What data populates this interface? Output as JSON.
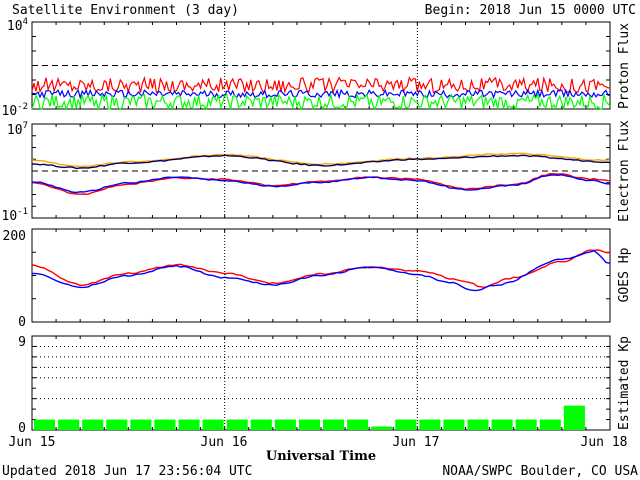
{
  "header": {
    "title": "Satellite Environment (3 day)",
    "begin": "Begin:  2018 Jun 15 0000 UTC"
  },
  "footer": {
    "updated": "Updated 2018 Jun 17 23:56:04 UTC",
    "credit": "NOAA/SWPC Boulder, CO USA",
    "xlabel": "Universal Time"
  },
  "x_axis": {
    "ticks": [
      "Jun 15",
      "Jun 16",
      "Jun 17",
      "Jun 18"
    ]
  },
  "chart_data": [
    {
      "id": "proton",
      "type": "line",
      "ylabel": "Proton Flux",
      "yscale": "log",
      "ylim": [
        0.01,
        10000
      ],
      "ytick_labels": [
        {
          "base": "10",
          "exp": "4"
        },
        {
          "base": "10",
          "exp": "-2"
        }
      ],
      "threshold": 10,
      "series": [
        {
          "color": "#ff0000",
          "base": 0.45,
          "noise": 0.12
        },
        {
          "color": "#0000ff",
          "base": 0.11,
          "noise": 0.06
        },
        {
          "color": "#00ff00",
          "base": 0.03,
          "noise": 0.12
        }
      ]
    },
    {
      "id": "electron",
      "type": "line",
      "ylabel": "Electron Flux",
      "yscale": "log",
      "ylim": [
        0.1,
        10000000
      ],
      "ytick_labels": [
        {
          "base": "10",
          "exp": "7"
        },
        {
          "base": "10",
          "exp": "-1"
        }
      ],
      "threshold": 1000,
      "series": [
        {
          "color": "#ffa500",
          "points": [
            [
              0,
              8000
            ],
            [
              6,
              2500
            ],
            [
              12,
              6000
            ],
            [
              24,
              25000
            ],
            [
              36,
              4000
            ],
            [
              48,
              12000
            ],
            [
              60,
              30000
            ],
            [
              72,
              8000
            ]
          ]
        },
        {
          "color": "#000060",
          "points": [
            [
              0,
              4000
            ],
            [
              6,
              1800
            ],
            [
              12,
              5000
            ],
            [
              24,
              20000
            ],
            [
              36,
              3000
            ],
            [
              48,
              10000
            ],
            [
              60,
              20000
            ],
            [
              72,
              6000
            ]
          ]
        },
        {
          "color": "#ff0000",
          "points": [
            [
              0,
              100
            ],
            [
              6,
              10
            ],
            [
              12,
              80
            ],
            [
              18,
              250
            ],
            [
              24,
              200
            ],
            [
              30,
              60
            ],
            [
              36,
              130
            ],
            [
              42,
              300
            ],
            [
              48,
              200
            ],
            [
              54,
              30
            ],
            [
              60,
              70
            ],
            [
              65,
              600
            ],
            [
              70,
              200
            ],
            [
              72,
              150
            ]
          ]
        },
        {
          "color": "#0000ff",
          "points": [
            [
              0,
              120
            ],
            [
              6,
              15
            ],
            [
              12,
              100
            ],
            [
              18,
              300
            ],
            [
              24,
              150
            ],
            [
              30,
              50
            ],
            [
              36,
              110
            ],
            [
              42,
              280
            ],
            [
              48,
              150
            ],
            [
              54,
              25
            ],
            [
              60,
              60
            ],
            [
              65,
              500
            ],
            [
              70,
              150
            ],
            [
              72,
              80
            ]
          ]
        }
      ]
    },
    {
      "id": "hp",
      "type": "line",
      "ylabel": "GOES Hp",
      "yscale": "linear",
      "ylim": [
        0,
        200
      ],
      "ytick_labels": [
        "200",
        "0"
      ],
      "series": [
        {
          "color": "#ff0000",
          "points": [
            [
              0,
              122
            ],
            [
              6,
              80
            ],
            [
              12,
              105
            ],
            [
              18,
              123
            ],
            [
              24,
              105
            ],
            [
              30,
              83
            ],
            [
              36,
              103
            ],
            [
              42,
              118
            ],
            [
              48,
              110
            ],
            [
              54,
              88
            ],
            [
              56,
              75
            ],
            [
              60,
              95
            ],
            [
              66,
              130
            ],
            [
              70,
              155
            ],
            [
              72,
              148
            ]
          ]
        },
        {
          "color": "#0000ff",
          "points": [
            [
              0,
              105
            ],
            [
              6,
              75
            ],
            [
              12,
              100
            ],
            [
              18,
              120
            ],
            [
              24,
              95
            ],
            [
              30,
              80
            ],
            [
              36,
              100
            ],
            [
              42,
              118
            ],
            [
              48,
              102
            ],
            [
              52,
              85
            ],
            [
              55,
              68
            ],
            [
              58,
              80
            ],
            [
              66,
              135
            ],
            [
              70,
              152
            ],
            [
              72,
              125
            ]
          ]
        }
      ]
    },
    {
      "id": "kp",
      "type": "bar",
      "ylabel": "Estimated Kp",
      "ylim": [
        0,
        9
      ],
      "ytick_labels": [
        "9",
        "0"
      ],
      "gridlines": [
        3,
        5,
        6,
        7,
        8,
        9
      ],
      "bar_color": "#00ff00",
      "values": [
        1,
        1,
        1,
        1,
        1,
        1,
        1,
        1,
        1,
        1,
        1,
        1,
        1,
        1,
        0.33,
        1,
        1,
        1,
        1,
        1,
        1,
        1,
        2.33,
        0
      ]
    }
  ]
}
